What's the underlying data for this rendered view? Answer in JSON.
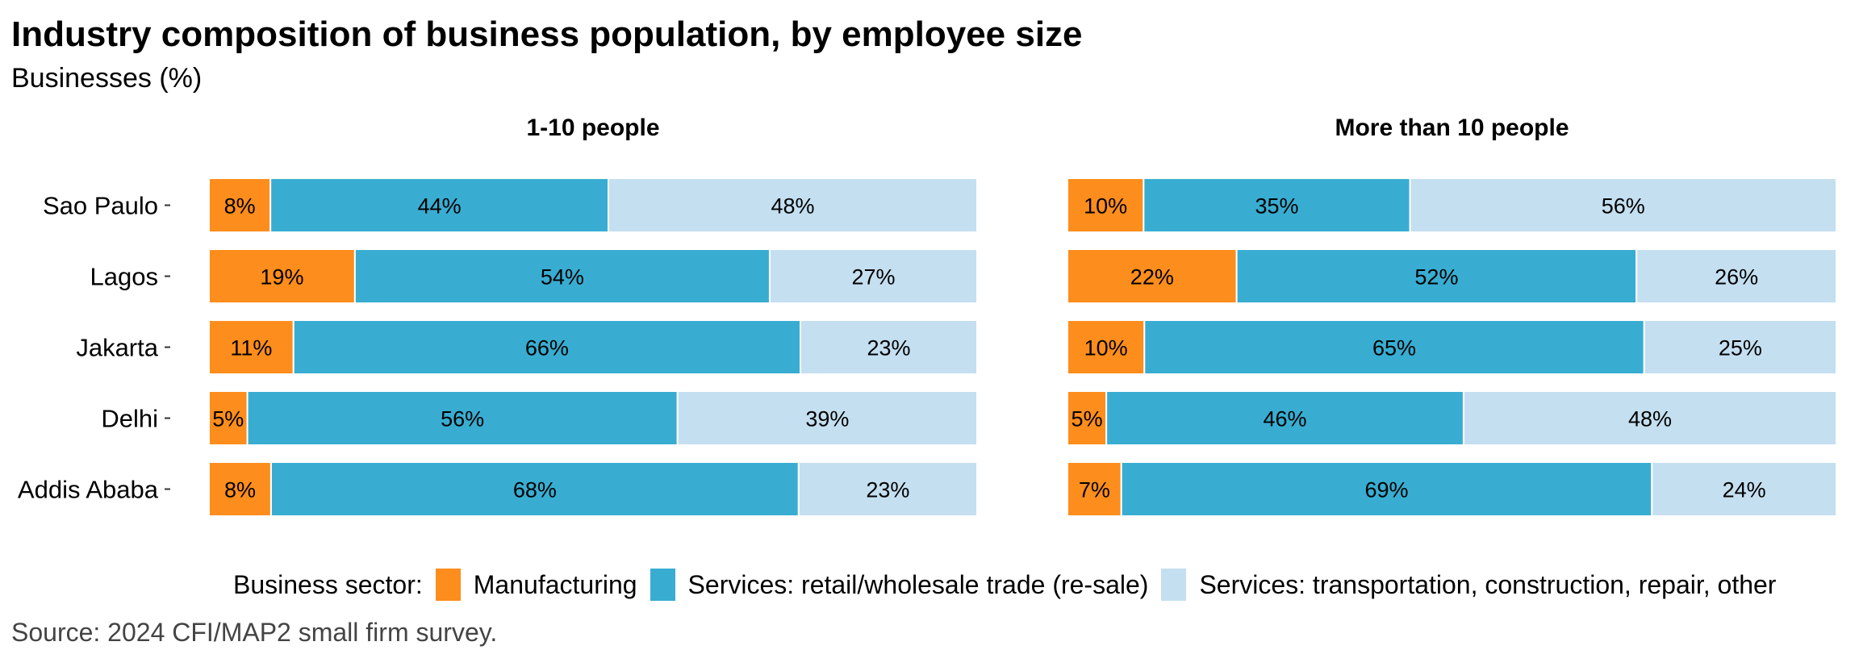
{
  "chart_data": {
    "type": "bar",
    "orientation": "horizontal",
    "stacked": true,
    "title": "Industry composition of business population, by employee size",
    "subtitle": "Businesses (%)",
    "xlabel": "",
    "ylabel": "",
    "xlim": [
      0,
      100
    ],
    "grid": false,
    "categories": [
      "Sao Paulo",
      "Lagos",
      "Jakarta",
      "Delhi",
      "Addis Ababa"
    ],
    "legend": {
      "title": "Business sector:",
      "placement": "bottom",
      "entries": [
        {
          "name": "Manufacturing",
          "color": "#FD8D1C"
        },
        {
          "name": "Services: retail/wholesale trade (re-sale)",
          "color": "#38ADD1"
        },
        {
          "name": "Services: transportation, construction, repair, other",
          "color": "#C4DFF0"
        }
      ]
    },
    "facets": [
      {
        "title": "1-10 people",
        "series": [
          {
            "name": "Manufacturing",
            "values": [
              8,
              19,
              11,
              5,
              8
            ]
          },
          {
            "name": "Services: retail/wholesale trade (re-sale)",
            "values": [
              44,
              54,
              66,
              56,
              68
            ]
          },
          {
            "name": "Services: transportation, construction, repair, other",
            "values": [
              48,
              27,
              23,
              39,
              23
            ]
          }
        ]
      },
      {
        "title": "More than 10 people",
        "series": [
          {
            "name": "Manufacturing",
            "values": [
              10,
              22,
              10,
              5,
              7
            ]
          },
          {
            "name": "Services: retail/wholesale trade (re-sale)",
            "values": [
              35,
              52,
              65,
              46,
              69
            ]
          },
          {
            "name": "Services: transportation, construction, repair, other",
            "values": [
              56,
              26,
              25,
              48,
              24
            ]
          }
        ]
      }
    ],
    "source": "Source: 2024 CFI/MAP2 small firm survey."
  }
}
